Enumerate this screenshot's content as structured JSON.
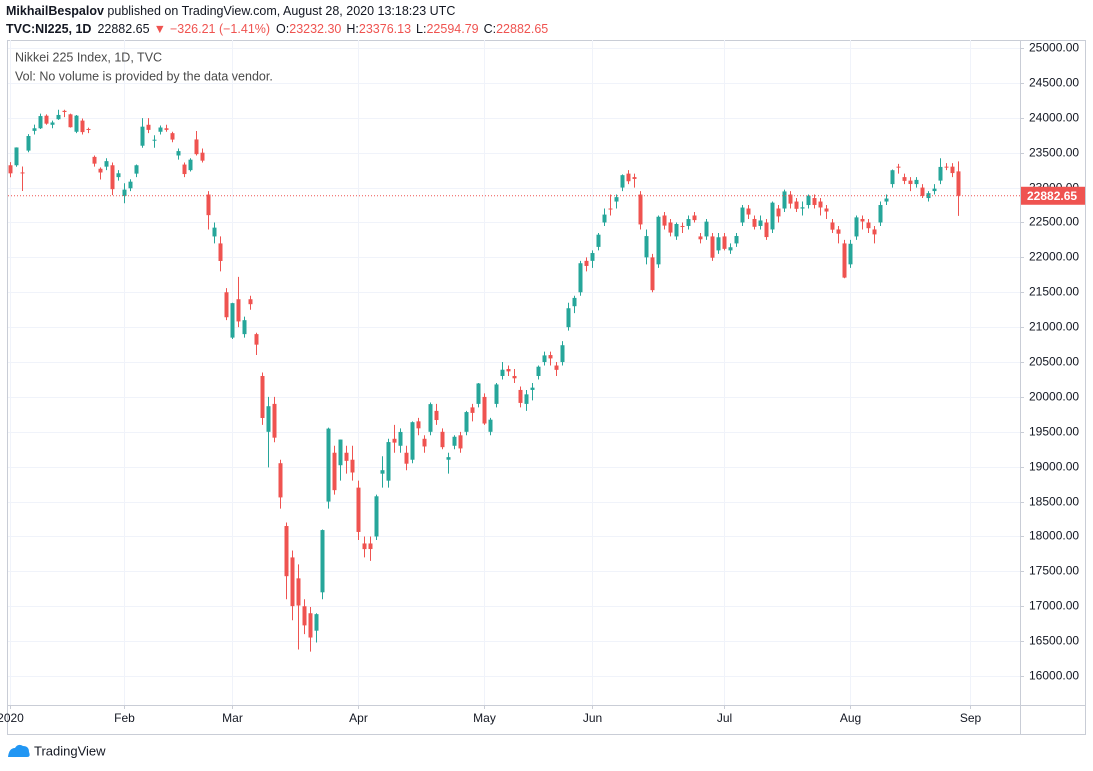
{
  "header": {
    "author": "MikhailBespalov",
    "published": " published on TradingView.com, August 28, 2020 13:18:23 UTC",
    "symbol": "TVC:NI225, 1D",
    "arrow": "▼",
    "change": "−326.21 (−1.41%)",
    "ohlc": [
      {
        "label": "O:",
        "value": "23232.30"
      },
      {
        "label": "H:",
        "value": "23376.13"
      },
      {
        "label": "L:",
        "value": "22594.79"
      },
      {
        "label": "C:",
        "value": "22882.65"
      }
    ]
  },
  "footer": {
    "brand": "TradingView"
  },
  "chart_data": {
    "type": "candlestick",
    "title": "Nikkei 225 Index, 1D, TVC",
    "subtitle": "Vol: No volume is provided by the data vendor.",
    "up_color": "#26a69a",
    "down_color": "#ef5350",
    "grid": true,
    "price_line": true,
    "ylim": [
      15585,
      25115
    ],
    "yticks": [
      {
        "value": 16000,
        "label": "16000.00"
      },
      {
        "value": 16500,
        "label": "16500.00"
      },
      {
        "value": 17000,
        "label": "17000.00"
      },
      {
        "value": 17500,
        "label": "17500.00"
      },
      {
        "value": 18000,
        "label": "18000.00"
      },
      {
        "value": 18500,
        "label": "18500.00"
      },
      {
        "value": 19000,
        "label": "19000.00"
      },
      {
        "value": 19500,
        "label": "19500.00"
      },
      {
        "value": 20000,
        "label": "20000.00"
      },
      {
        "value": 20500,
        "label": "20500.00"
      },
      {
        "value": 21000,
        "label": "21000.00"
      },
      {
        "value": 21500,
        "label": "21500.00"
      },
      {
        "value": 22000,
        "label": "22000.00"
      },
      {
        "value": 22500,
        "label": "22500.00"
      },
      {
        "value": 23000,
        "label": "23000.00"
      },
      {
        "value": 23500,
        "label": "23500.00"
      },
      {
        "value": 24000,
        "label": "24000.00"
      },
      {
        "value": 24500,
        "label": "24500.00"
      },
      {
        "value": 25000,
        "label": "25000.00"
      }
    ],
    "categories": [
      "2020",
      null,
      null,
      null,
      null,
      null,
      null,
      null,
      null,
      null,
      null,
      null,
      null,
      null,
      null,
      null,
      null,
      null,
      null,
      "Feb",
      null,
      null,
      null,
      null,
      null,
      null,
      null,
      null,
      null,
      null,
      null,
      null,
      null,
      null,
      null,
      null,
      null,
      "Mar",
      null,
      null,
      null,
      null,
      null,
      null,
      null,
      null,
      null,
      null,
      null,
      null,
      null,
      null,
      null,
      null,
      null,
      null,
      null,
      null,
      "Apr",
      null,
      null,
      null,
      null,
      null,
      null,
      null,
      null,
      null,
      null,
      null,
      null,
      null,
      null,
      null,
      null,
      null,
      null,
      null,
      null,
      "May",
      null,
      null,
      null,
      null,
      null,
      null,
      null,
      null,
      null,
      null,
      null,
      null,
      null,
      null,
      null,
      null,
      null,
      "Jun",
      null,
      null,
      null,
      null,
      null,
      null,
      null,
      null,
      null,
      null,
      null,
      null,
      null,
      null,
      null,
      null,
      null,
      null,
      null,
      null,
      null,
      "Jul",
      null,
      null,
      null,
      null,
      null,
      null,
      null,
      null,
      null,
      null,
      null,
      null,
      null,
      null,
      null,
      null,
      null,
      null,
      null,
      null,
      "Aug",
      null,
      null,
      null,
      null,
      null,
      null,
      null,
      null,
      null,
      null,
      null,
      null,
      null,
      null,
      null,
      null,
      null,
      null,
      null,
      "Sep"
    ],
    "open": [
      23320,
      23320,
      23217,
      23530,
      23813,
      23850,
      24030,
      23900,
      23980,
      24100,
      24050,
      23800,
      23960,
      23840,
      23440,
      23270,
      23300,
      23320,
      23150,
      22880,
      22990,
      23200,
      23600,
      23900,
      23680,
      23800,
      23850,
      23780,
      23460,
      23330,
      23250,
      23690,
      23500,
      22900,
      22300,
      22200,
      21500,
      20850,
      21400,
      20900,
      21400,
      20900,
      20300,
      19500,
      19900,
      19050,
      18150,
      17700,
      17400,
      17000,
      16900,
      16650,
      17200,
      18500,
      19200,
      19021,
      19200,
      19100,
      18700,
      17900,
      17900,
      18000,
      18900,
      18800,
      19400,
      19300,
      19200,
      19100,
      19650,
      19400,
      19500,
      19800,
      19500,
      19100,
      19300,
      19450,
      19500,
      19850,
      19900,
      20000,
      19500,
      19900,
      20300,
      20400,
      20300,
      20100,
      19900,
      20100,
      20300,
      20500,
      20600,
      20450,
      20500,
      21000,
      21300,
      21500,
      21950,
      21950,
      22150,
      22500,
      22700,
      22800,
      23000,
      23200,
      23150,
      22900,
      22000,
      22000,
      21900,
      22600,
      22500,
      22300,
      22450,
      22450,
      22600,
      22300,
      22300,
      22300,
      22100,
      22300,
      22100,
      22200,
      22500,
      22700,
      22550,
      22450,
      22500,
      22400,
      22700,
      22700,
      22900,
      22800,
      22700,
      22750,
      22850,
      22800,
      22700,
      22500,
      22400,
      22200,
      21900,
      22300,
      22550,
      22500,
      22400,
      22500,
      22800,
      23050,
      23300,
      23150,
      23100,
      23050,
      23000,
      22850,
      22950,
      23100,
      23300,
      23300,
      23232.3,
      null,
      null
    ],
    "high": [
      23365,
      23577,
      23303,
      23767,
      23903,
      24059,
      24050,
      23960,
      24116,
      24115,
      24060,
      24040,
      23990,
      23860,
      23460,
      23290,
      23420,
      23360,
      23250,
      23063,
      23120,
      23330,
      23995,
      23995,
      23750,
      23890,
      23900,
      23800,
      23560,
      23360,
      23420,
      23810,
      23560,
      22950,
      22500,
      22300,
      21560,
      21350,
      21720,
      21150,
      21450,
      20920,
      20350,
      20000,
      20000,
      19100,
      18200,
      17800,
      17600,
      17100,
      16990,
      16900,
      18100,
      19560,
      19300,
      19389,
      19300,
      19300,
      18800,
      18000,
      18000,
      18600,
      19150,
      19400,
      19600,
      19550,
      19300,
      19650,
      19700,
      19450,
      19920,
      19900,
      19550,
      19200,
      19450,
      19500,
      19800,
      19900,
      20200,
      20050,
      19700,
      20200,
      20500,
      20450,
      20400,
      20150,
      20100,
      20200,
      20450,
      20650,
      20650,
      20500,
      20800,
      21350,
      21450,
      21950,
      22000,
      22100,
      22350,
      22700,
      22900,
      22900,
      23190,
      23250,
      23200,
      22950,
      22400,
      22050,
      22600,
      22650,
      22550,
      22500,
      22500,
      22600,
      22650,
      22350,
      22550,
      22350,
      22350,
      22350,
      22200,
      22350,
      22750,
      22750,
      22600,
      22600,
      22550,
      22800,
      22750,
      22970,
      22950,
      22850,
      22800,
      22900,
      22900,
      22850,
      22750,
      22550,
      22450,
      22250,
      22250,
      22600,
      22600,
      22550,
      22450,
      22800,
      22900,
      23260,
      23340,
      23200,
      23150,
      23150,
      23050,
      22950,
      23050,
      23420,
      23350,
      23350,
      23376.13,
      null,
      null
    ],
    "low": [
      23148,
      23299,
      22951,
      23506,
      23761,
      23840,
      23900,
      23850,
      23970,
      24010,
      23860,
      23780,
      23760,
      23780,
      23300,
      23115,
      23250,
      22892,
      23100,
      22775,
      22950,
      23150,
      23570,
      23780,
      23570,
      23760,
      23800,
      23650,
      23400,
      23150,
      23230,
      23460,
      23360,
      22400,
      22200,
      21800,
      21100,
      20830,
      21000,
      20850,
      21250,
      20600,
      19600,
      18990,
      19350,
      18400,
      17100,
      16800,
      16380,
      16600,
      16350,
      16480,
      17100,
      18400,
      18600,
      18800,
      18900,
      18800,
      17950,
      17700,
      17650,
      17950,
      18700,
      18700,
      19200,
      19200,
      18950,
      19050,
      19450,
      19200,
      19450,
      19600,
      19250,
      18900,
      19250,
      19200,
      19450,
      19650,
      19850,
      19600,
      19450,
      19850,
      20250,
      20300,
      20200,
      19850,
      19800,
      19950,
      20250,
      20450,
      20450,
      20300,
      20450,
      20950,
      21200,
      21450,
      21800,
      21850,
      22100,
      22450,
      22600,
      22700,
      22950,
      23050,
      23000,
      22400,
      21900,
      21500,
      21850,
      22400,
      22300,
      22250,
      22350,
      22400,
      22500,
      22200,
      22250,
      21950,
      22050,
      22100,
      22050,
      22150,
      22450,
      22550,
      22400,
      22400,
      22250,
      22350,
      22500,
      22650,
      22700,
      22650,
      22600,
      22700,
      22700,
      22600,
      22550,
      22350,
      22200,
      21700,
      21850,
      22250,
      22400,
      22350,
      22200,
      22450,
      22750,
      23000,
      23200,
      23050,
      22950,
      23000,
      22850,
      22800,
      22900,
      23050,
      23250,
      23150,
      22594.79,
      null,
      null
    ],
    "close": [
      23204,
      23575,
      23204,
      23739,
      23850,
      24025,
      23916,
      23933,
      24041,
      24083,
      23865,
      24031,
      23795,
      23827,
      23343,
      23216,
      23379,
      22977,
      23205,
      22971,
      23085,
      23320,
      23873,
      23827,
      23686,
      23861,
      23827,
      23688,
      23523,
      23194,
      23400,
      23479,
      23386,
      22605,
      22426,
      21948,
      21142,
      21344,
      21082,
      21100,
      21329,
      20749,
      19698,
      19867,
      19416,
      18560,
      17431,
      17002,
      17011,
      16726,
      16552,
      16887,
      18092,
      19546,
      18664,
      19389,
      19084,
      18917,
      18065,
      17819,
      17820,
      18576,
      18950,
      19353,
      19345,
      19498,
      19043,
      19638,
      19550,
      19290,
      19897,
      19669,
      19280,
      19137,
      19429,
      19262,
      19783,
      19771,
      20193,
      19619,
      19674,
      20179,
      20390,
      20366,
      20267,
      19914,
      20037,
      20133,
      20433,
      20595,
      20552,
      20388,
      20741,
      21271,
      21419,
      21916,
      21877,
      22062,
      22325,
      22613,
      22695,
      22863,
      23178,
      23091,
      23124,
      22472,
      22305,
      21530,
      22582,
      22455,
      22355,
      22478,
      22437,
      22549,
      22534,
      22259,
      22512,
      21995,
      22288,
      22122,
      22145,
      22306,
      22714,
      22614,
      22438,
      22529,
      22291,
      22784,
      22587,
      22945,
      22770,
      22696,
      22717,
      22884,
      22751,
      22715,
      22657,
      22397,
      22339,
      21710,
      22195,
      22573,
      22514,
      22418,
      22329,
      22750,
      22843,
      23249,
      23289,
      23096,
      23051,
      23110,
      22880,
      22920,
      22985,
      23296,
      23290,
      23208,
      22882.65,
      null,
      null
    ]
  }
}
